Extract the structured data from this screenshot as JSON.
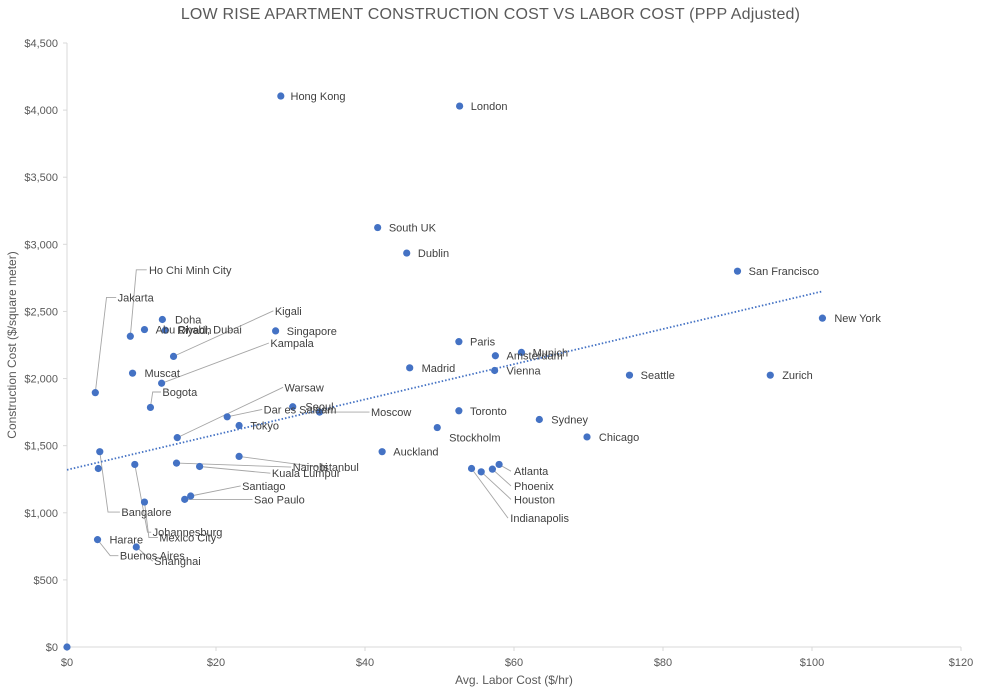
{
  "chart_data": {
    "type": "scatter",
    "title": "LOW RISE APARTMENT CONSTRUCTION COST VS LABOR COST  (PPP Adjusted)",
    "xlabel": "Avg. Labor Cost ($/hr)",
    "ylabel": "Construction Cost ($/square meter)",
    "xlim": [
      0,
      120
    ],
    "ylim": [
      0,
      4500
    ],
    "x_ticks": [
      "$0",
      "$20",
      "$40",
      "$60",
      "$80",
      "$100",
      "$120"
    ],
    "y_ticks": [
      "$0",
      "$500",
      "$1,000",
      "$1,500",
      "$2,000",
      "$2,500",
      "$3,000",
      "$3,500",
      "$4,000",
      "$4,500"
    ],
    "grid": false,
    "legend": "none",
    "marker_color": "#4472C4",
    "trendline": {
      "type": "linear",
      "style": "dotted",
      "color": "#4472C4",
      "x": [
        0,
        101.4
      ],
      "y": [
        1320,
        2650
      ]
    },
    "points": [
      {
        "label": "Hong Kong",
        "x": 28.7,
        "y": 4105
      },
      {
        "label": "London",
        "x": 52.7,
        "y": 4030
      },
      {
        "label": "South UK",
        "x": 41.7,
        "y": 3125
      },
      {
        "label": "Dublin",
        "x": 45.6,
        "y": 2935
      },
      {
        "label": "San Francisco",
        "x": 90.0,
        "y": 2800
      },
      {
        "label": "New York",
        "x": 101.4,
        "y": 2450
      },
      {
        "label": "Paris",
        "x": 52.6,
        "y": 2275
      },
      {
        "label": "Munich",
        "x": 61.0,
        "y": 2195
      },
      {
        "label": "Amsterdam",
        "x": 57.5,
        "y": 2170
      },
      {
        "label": "Madrid",
        "x": 46.0,
        "y": 2080
      },
      {
        "label": "Vienna",
        "x": 57.4,
        "y": 2060
      },
      {
        "label": "Seattle",
        "x": 75.5,
        "y": 2025
      },
      {
        "label": "Zurich",
        "x": 94.4,
        "y": 2025
      },
      {
        "label": "Toronto",
        "x": 52.6,
        "y": 1760
      },
      {
        "label": "Sydney",
        "x": 63.4,
        "y": 1695
      },
      {
        "label": "Stockholm",
        "x": 49.7,
        "y": 1635
      },
      {
        "label": "Chicago",
        "x": 69.8,
        "y": 1565
      },
      {
        "label": "Auckland",
        "x": 42.3,
        "y": 1455
      },
      {
        "label": "Atlanta",
        "x": 58.0,
        "y": 1360
      },
      {
        "label": "Phoenix",
        "x": 57.1,
        "y": 1325
      },
      {
        "label": "Houston",
        "x": 55.6,
        "y": 1305
      },
      {
        "label": "Indianapolis",
        "x": 54.3,
        "y": 1330
      },
      {
        "label": "Singapore",
        "x": 28.0,
        "y": 2355
      },
      {
        "label": "Seoul",
        "x": 30.3,
        "y": 1790
      },
      {
        "label": "Moscow",
        "x": 33.9,
        "y": 1750
      },
      {
        "label": "Tokyo",
        "x": 23.1,
        "y": 1650
      },
      {
        "label": "Dar es Salaam",
        "x": 21.5,
        "y": 1715
      },
      {
        "label": "Warsaw",
        "x": 14.8,
        "y": 1560
      },
      {
        "label": "Istanbul",
        "x": 23.1,
        "y": 1420
      },
      {
        "label": "Nairobi",
        "x": 14.7,
        "y": 1370
      },
      {
        "label": "Kuala Lumpur",
        "x": 17.8,
        "y": 1345
      },
      {
        "label": "Santiago",
        "x": 16.6,
        "y": 1125
      },
      {
        "label": "Sao Paulo",
        "x": 15.8,
        "y": 1100
      },
      {
        "label": "Kigali",
        "x": 14.3,
        "y": 2165
      },
      {
        "label": "Kampala",
        "x": 12.7,
        "y": 1965
      },
      {
        "label": "Doha",
        "x": 12.8,
        "y": 2440
      },
      {
        "label": "Riyadh",
        "x": 13.2,
        "y": 2360
      },
      {
        "label": "Abu Dhabi, Dubai",
        "x": 10.4,
        "y": 2365
      },
      {
        "label": "Ho Chi Minh City",
        "x": 8.5,
        "y": 2315
      },
      {
        "label": "Muscat",
        "x": 8.8,
        "y": 2040
      },
      {
        "label": "Bogota",
        "x": 11.2,
        "y": 1785
      },
      {
        "label": "Jakarta",
        "x": 3.8,
        "y": 1895
      },
      {
        "label": "Bangalore",
        "x": 4.4,
        "y": 1455
      },
      {
        "label": "Johannesburg",
        "x": 9.1,
        "y": 1360
      },
      {
        "label": "Mexico City",
        "x": 10.4,
        "y": 1080
      },
      {
        "label": "Harare",
        "x": 4.2,
        "y": 1330
      },
      {
        "label": "Buenos Aires",
        "x": 4.1,
        "y": 800
      },
      {
        "label": "Shanghai",
        "x": 9.3,
        "y": 745
      },
      {
        "label": "",
        "x": 0.0,
        "y": 0
      }
    ],
    "annotations": [
      {
        "text": "Hong Kong",
        "at": [
          30.0,
          4105
        ]
      },
      {
        "text": "London",
        "at": [
          54.2,
          4030
        ]
      },
      {
        "text": "South UK",
        "at": [
          43.2,
          3125
        ]
      },
      {
        "text": "Dublin",
        "at": [
          47.1,
          2935
        ]
      },
      {
        "text": "San Francisco",
        "at": [
          91.5,
          2800
        ]
      },
      {
        "text": "New York",
        "at": [
          103.0,
          2450
        ]
      },
      {
        "text": "Paris",
        "at": [
          54.1,
          2275
        ]
      },
      {
        "text": "Munich",
        "at": [
          62.5,
          2195
        ]
      },
      {
        "text": "Amsterdam",
        "at": [
          59.0,
          2170
        ]
      },
      {
        "text": "Madrid",
        "at": [
          47.6,
          2080
        ]
      },
      {
        "text": "Vienna",
        "at": [
          59.0,
          2060
        ]
      },
      {
        "text": "Seattle",
        "at": [
          77.0,
          2025
        ]
      },
      {
        "text": "Zurich",
        "at": [
          96.0,
          2025
        ]
      },
      {
        "text": "Toronto",
        "at": [
          54.1,
          1760
        ]
      },
      {
        "text": "Sydney",
        "at": [
          65.0,
          1695
        ]
      },
      {
        "text": "Stockholm",
        "at": [
          51.3,
          1560
        ]
      },
      {
        "text": "Chicago",
        "at": [
          71.4,
          1565
        ]
      },
      {
        "text": "Auckland",
        "at": [
          43.8,
          1455
        ]
      },
      {
        "text": "Atlanta",
        "at": [
          60.0,
          1310
        ],
        "leader": [
          [
            58.0,
            1360
          ],
          [
            59.6,
            1310
          ]
        ]
      },
      {
        "text": "Phoenix",
        "at": [
          60.0,
          1200
        ],
        "leader": [
          [
            57.1,
            1325
          ],
          [
            59.6,
            1200
          ]
        ]
      },
      {
        "text": "Houston",
        "at": [
          60.0,
          1100
        ],
        "leader": [
          [
            55.6,
            1305
          ],
          [
            59.6,
            1100
          ]
        ]
      },
      {
        "text": "Indianapolis",
        "at": [
          59.5,
          960
        ],
        "leader": [
          [
            54.3,
            1330
          ],
          [
            59.2,
            960
          ]
        ]
      },
      {
        "text": "Singapore",
        "at": [
          29.5,
          2355
        ]
      },
      {
        "text": "Seoul",
        "at": [
          32.0,
          1790
        ]
      },
      {
        "text": "Moscow",
        "at": [
          40.8,
          1750
        ],
        "leader": [
          [
            33.9,
            1750
          ],
          [
            40.6,
            1750
          ]
        ]
      },
      {
        "text": "Tokyo",
        "at": [
          24.6,
          1650
        ]
      },
      {
        "text": "Dar es Salaam",
        "at": [
          26.4,
          1770
        ],
        "leader": [
          [
            21.5,
            1715
          ],
          [
            26.2,
            1770
          ]
        ]
      },
      {
        "text": "Warsaw",
        "at": [
          29.2,
          1935
        ],
        "leader": [
          [
            14.8,
            1560
          ],
          [
            29.0,
            1935
          ]
        ]
      },
      {
        "text": "Istanbul",
        "at": [
          34.0,
          1340
        ],
        "leader": [
          [
            23.1,
            1420
          ],
          [
            33.8,
            1340
          ]
        ]
      },
      {
        "text": "Nairobi",
        "at": [
          30.3,
          1340
        ],
        "leader": [
          [
            14.7,
            1370
          ],
          [
            30.1,
            1340
          ]
        ]
      },
      {
        "text": "Kuala Lumpur",
        "at": [
          27.5,
          1295
        ],
        "leader": [
          [
            17.8,
            1345
          ],
          [
            27.3,
            1295
          ]
        ]
      },
      {
        "text": "Santiago",
        "at": [
          23.5,
          1200
        ],
        "leader": [
          [
            16.6,
            1125
          ],
          [
            23.3,
            1200
          ]
        ]
      },
      {
        "text": "Sao Paulo",
        "at": [
          25.1,
          1100
        ],
        "leader": [
          [
            15.8,
            1100
          ],
          [
            24.9,
            1100
          ]
        ]
      },
      {
        "text": "Kigali",
        "at": [
          27.9,
          2505
        ],
        "leader": [
          [
            14.3,
            2165
          ],
          [
            27.7,
            2505
          ]
        ]
      },
      {
        "text": "Kampala",
        "at": [
          27.3,
          2265
        ],
        "leader": [
          [
            12.7,
            1965
          ],
          [
            27.1,
            2265
          ]
        ]
      },
      {
        "text": "Doha",
        "at": [
          14.5,
          2440
        ]
      },
      {
        "text": "Riyadh",
        "at": [
          14.8,
          2360
        ]
      },
      {
        "text": "Abu Dhabi, Dubai",
        "at": [
          11.9,
          2365
        ]
      },
      {
        "text": "Ho Chi Minh City",
        "at": [
          11.0,
          2810
        ],
        "leader": [
          [
            8.5,
            2315
          ],
          [
            9.3,
            2810
          ],
          [
            10.7,
            2810
          ]
        ]
      },
      {
        "text": "Muscat",
        "at": [
          10.4,
          2040
        ]
      },
      {
        "text": "Bogota",
        "at": [
          12.8,
          1900
        ],
        "leader": [
          [
            11.2,
            1785
          ],
          [
            11.5,
            1900
          ],
          [
            12.6,
            1900
          ]
        ]
      },
      {
        "text": "Jakarta",
        "at": [
          6.8,
          2605
        ],
        "leader": [
          [
            3.8,
            1895
          ],
          [
            5.3,
            2605
          ],
          [
            6.6,
            2605
          ]
        ]
      },
      {
        "text": "Bangalore",
        "at": [
          7.3,
          1005
        ],
        "leader": [
          [
            4.4,
            1455
          ],
          [
            5.5,
            1005
          ],
          [
            7.1,
            1005
          ]
        ]
      },
      {
        "text": "Johannesburg",
        "at": [
          11.5,
          855
        ],
        "leader": [
          [
            9.1,
            1360
          ],
          [
            10.8,
            855
          ],
          [
            11.3,
            855
          ]
        ]
      },
      {
        "text": "Mexico City",
        "at": [
          12.4,
          815
        ],
        "leader": [
          [
            10.4,
            1080
          ],
          [
            11.0,
            815
          ],
          [
            12.2,
            815
          ]
        ]
      },
      {
        "text": "Harare",
        "at": [
          5.7,
          800
        ]
      },
      {
        "text": "Buenos Aires",
        "at": [
          7.1,
          680
        ],
        "leader": [
          [
            4.1,
            800
          ],
          [
            5.8,
            680
          ],
          [
            6.9,
            680
          ]
        ]
      },
      {
        "text": "Shanghai",
        "at": [
          11.7,
          640
        ],
        "leader": [
          [
            9.3,
            745
          ],
          [
            11.5,
            640
          ]
        ]
      }
    ]
  }
}
